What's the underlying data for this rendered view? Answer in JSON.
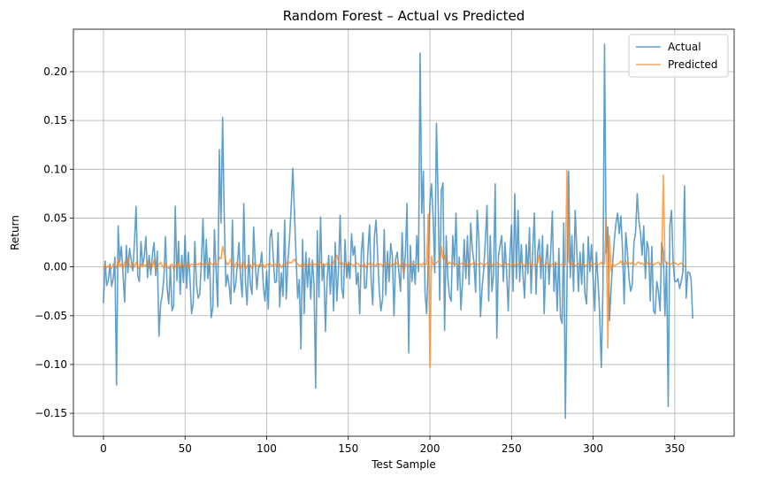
{
  "chart_data": {
    "type": "line",
    "title": "Random Forest – Actual vs Predicted",
    "xlabel": "Test Sample",
    "ylabel": "Return",
    "xlim": [
      -18.4,
      386.4
    ],
    "ylim": [
      -0.1735,
      0.2435
    ],
    "xticks": [
      0,
      50,
      100,
      150,
      200,
      250,
      300,
      350
    ],
    "yticks": [
      -0.15,
      -0.1,
      -0.05,
      0.0,
      0.05,
      0.1,
      0.15,
      0.2
    ],
    "ytick_labels": [
      "−0.15",
      "−0.10",
      "−0.05",
      "0.00",
      "0.05",
      "0.10",
      "0.15",
      "0.20"
    ],
    "grid": true,
    "legend_position": "top-right",
    "x_start": 0,
    "series": [
      {
        "name": "Actual",
        "color": "#1f77b4",
        "alpha": 0.7,
        "values": [
          -0.037,
          0.006,
          -0.019,
          -0.014,
          0.003,
          -0.02,
          -0.012,
          0.01,
          -0.121,
          0.042,
          0.005,
          0.021,
          -0.008,
          -0.036,
          0.022,
          -0.006,
          0.019,
          0.007,
          -0.004,
          0.025,
          0.062,
          -0.009,
          -0.015,
          0.026,
          0.002,
          0.01,
          0.031,
          -0.011,
          0.012,
          -0.008,
          0.013,
          0.025,
          -0.009,
          0.016,
          -0.071,
          -0.039,
          -0.029,
          -0.012,
          0.031,
          -0.021,
          -0.038,
          0.001,
          -0.045,
          -0.04,
          0.062,
          -0.014,
          0.026,
          -0.028,
          0.012,
          -0.016,
          0.032,
          -0.022,
          0.015,
          -0.012,
          -0.048,
          -0.037,
          0.026,
          -0.018,
          -0.032,
          -0.028,
          0.005,
          0.049,
          -0.014,
          0.028,
          -0.012,
          0.009,
          -0.052,
          -0.042,
          0.038,
          -0.003,
          -0.041,
          0.12,
          0.045,
          0.153,
          0.052,
          -0.02,
          -0.008,
          -0.019,
          -0.038,
          0.048,
          -0.026,
          -0.018,
          0.002,
          0.025,
          -0.011,
          -0.031,
          0.065,
          -0.016,
          -0.039,
          0.012,
          -0.018,
          -0.028,
          0.041,
          0.004,
          -0.023,
          -0.001,
          0.001,
          0.015,
          -0.021,
          -0.035,
          -0.004,
          -0.043,
          0.03,
          0.038,
          0.011,
          -0.016,
          -0.015,
          0.035,
          -0.041,
          -0.006,
          -0.03,
          0.048,
          -0.033,
          0.006,
          0.029,
          0.061,
          0.101,
          0.056,
          0.01,
          -0.032,
          -0.013,
          -0.084,
          0.028,
          -0.048,
          0.015,
          -0.021,
          0.009,
          -0.033,
          0.007,
          -0.018,
          -0.124,
          0.037,
          -0.031,
          0.051,
          -0.014,
          0.003,
          -0.066,
          -0.015,
          0.012,
          -0.028,
          0.011,
          -0.045,
          0.025,
          -0.035,
          -0.003,
          0.053,
          -0.022,
          -0.032,
          0.028,
          -0.011,
          0.005,
          -0.012,
          0.034,
          0.012,
          0.021,
          -0.018,
          -0.006,
          -0.048,
          0.015,
          0.035,
          -0.022,
          -0.021,
          0.015,
          0.043,
          -0.014,
          -0.039,
          0.031,
          0.048,
          0.012,
          -0.025,
          -0.045,
          -0.033,
          0.038,
          -0.029,
          0.016,
          -0.015,
          0.024,
          0.011,
          -0.05,
          0.008,
          0.015,
          -0.006,
          -0.025,
          0.035,
          -0.012,
          0.015,
          0.065,
          -0.088,
          0.022,
          -0.015,
          0.006,
          -0.018,
          0.032,
          -0.005,
          0.219,
          0.055,
          0.098,
          -0.026,
          -0.048,
          0.006,
          0.065,
          0.085,
          0.05,
          -0.006,
          0.147,
          0.073,
          -0.034,
          0.078,
          0.086,
          -0.065,
          0.032,
          -0.012,
          -0.03,
          -0.035,
          0.032,
          0.001,
          0.055,
          -0.024,
          0.01,
          -0.044,
          -0.015,
          0.028,
          -0.012,
          0.032,
          -0.018,
          0.045,
          0.018,
          0.005,
          -0.026,
          0.058,
          0.028,
          -0.051,
          -0.021,
          -0.002,
          0.028,
          0.063,
          -0.035,
          0.032,
          -0.025,
          -0.008,
          0.085,
          -0.073,
          0.011,
          0.022,
          0.032,
          -0.015,
          0.025,
          -0.005,
          -0.045,
          0.011,
          0.043,
          -0.025,
          0.075,
          -0.012,
          0.058,
          -0.015,
          0.023,
          -0.008,
          -0.032,
          0.023,
          -0.007,
          0.04,
          -0.027,
          0.017,
          0.055,
          -0.028,
          0.015,
          0.028,
          -0.012,
          0.032,
          -0.048,
          0.005,
          0.023,
          -0.018,
          0.015,
          0.057,
          -0.025,
          0.005,
          -0.045,
          0.019,
          -0.052,
          -0.058,
          0.045,
          -0.155,
          -0.015,
          0.098,
          -0.011,
          0.032,
          -0.025,
          0.058,
          0.016,
          -0.025,
          0.015,
          -0.018,
          0.024,
          -0.028,
          -0.038,
          0.031,
          -0.005,
          0.023,
          -0.012,
          -0.045,
          0.015,
          -0.015,
          -0.048,
          -0.103,
          -0.024,
          0.228,
          0.014,
          0.041,
          -0.055,
          -0.022,
          0.005,
          0.028,
          0.045,
          0.055,
          0.034,
          0.052,
          0.018,
          -0.038,
          0.035,
          0.015,
          -0.012,
          -0.025,
          -0.018,
          0.025,
          0.035,
          0.075,
          0.048,
          0.035,
          0.012,
          0.042,
          -0.012,
          0.026,
          0.018,
          -0.035,
          0.021,
          -0.045,
          -0.048,
          -0.015,
          -0.025,
          -0.045,
          0.025,
          0.015,
          -0.05,
          0.005,
          -0.143,
          0.042,
          0.058,
          0.005,
          -0.015,
          -0.015,
          -0.012,
          -0.022,
          -0.015,
          -0.005,
          0.083,
          -0.032,
          -0.005,
          -0.006,
          -0.012,
          -0.053
        ]
      },
      {
        "name": "Predicted",
        "color": "#ff7f0e",
        "alpha": 0.7,
        "values": [
          -0.003,
          0.002,
          -0.001,
          0.001,
          0.0,
          -0.002,
          0.003,
          0.001,
          -0.001,
          0.008,
          0.0,
          0.003,
          -0.002,
          0.005,
          0.001,
          0.009,
          0.002,
          -0.001,
          0.004,
          0.0,
          0.005,
          0.001,
          -0.002,
          0.003,
          0.0,
          0.002,
          0.001,
          0.006,
          -0.001,
          0.003,
          0.0,
          0.007,
          -0.004,
          0.001,
          0.002,
          0.005,
          0.001,
          -0.001,
          0.004,
          0.0,
          -0.002,
          0.002,
          0.003,
          -0.003,
          0.001,
          0.0,
          0.005,
          -0.002,
          0.003,
          0.001,
          0.0,
          0.004,
          -0.002,
          0.001,
          0.003,
          0.002,
          0.001,
          0.003,
          0.002,
          0.004,
          0.001,
          0.003,
          0.002,
          0.004,
          0.001,
          0.005,
          0.003,
          0.002,
          0.004,
          0.002,
          0.003,
          0.01,
          0.008,
          0.021,
          0.015,
          0.006,
          0.002,
          0.004,
          0.008,
          0.002,
          -0.001,
          0.003,
          0.005,
          0.001,
          -0.002,
          0.004,
          0.005,
          -0.003,
          0.001,
          0.003,
          0.002,
          -0.002,
          0.004,
          0.001,
          0.002,
          0.001,
          0.003,
          0.001,
          0.002,
          -0.001,
          0.003,
          0.002,
          0.004,
          0.001,
          0.002,
          0.003,
          0.001,
          0.002,
          0.003,
          -0.001,
          0.002,
          0.001,
          0.004,
          0.003,
          0.005,
          0.004,
          0.006,
          0.008,
          0.005,
          0.003,
          0.001,
          0.002,
          -0.001,
          0.003,
          0.002,
          0.001,
          0.004,
          0.002,
          0.001,
          0.003,
          0.002,
          0.004,
          0.001,
          0.005,
          0.002,
          0.003,
          0.001,
          0.004,
          0.003,
          0.002,
          0.001,
          0.005,
          0.008,
          0.012,
          0.006,
          0.003,
          0.005,
          0.002,
          0.003,
          0.001,
          0.004,
          0.002,
          0.003,
          0.001,
          0.002,
          0.004,
          0.003,
          0.001,
          0.002,
          0.001,
          0.003,
          -0.001,
          0.002,
          0.004,
          0.001,
          0.003,
          0.002,
          0.001,
          0.004,
          0.002,
          0.003,
          0.001,
          0.002,
          0.003,
          0.004,
          0.002,
          0.001,
          0.003,
          0.002,
          0.005,
          0.003,
          0.002,
          0.001,
          0.004,
          -0.006,
          0.003,
          0.002,
          0.001,
          0.004,
          0.003,
          0.002,
          0.001,
          0.003,
          0.002,
          0.003,
          0.001,
          0.004,
          0.002,
          0.003,
          0.054,
          -0.103,
          0.011,
          0.002,
          0.003,
          0.004,
          0.006,
          0.005,
          0.021,
          0.008,
          0.012,
          0.004,
          0.002,
          0.005,
          0.003,
          0.004,
          0.002,
          0.003,
          0.001,
          0.002,
          0.003,
          0.004,
          0.002,
          0.003,
          0.001,
          0.004,
          0.002,
          0.003,
          0.005,
          0.002,
          0.003,
          0.002,
          0.004,
          0.003,
          0.001,
          0.002,
          0.004,
          0.003,
          0.002,
          0.001,
          0.003,
          0.002,
          0.004,
          0.003,
          0.002,
          0.001,
          0.003,
          0.004,
          0.002,
          0.003,
          0.001,
          0.002,
          0.003,
          0.001,
          0.004,
          0.002,
          0.003,
          0.005,
          0.002,
          0.001,
          0.003,
          0.002,
          0.004,
          0.001,
          0.003,
          0.002,
          0.001,
          0.004,
          0.012,
          0.003,
          0.002,
          0.001,
          0.003,
          0.004,
          0.002,
          0.001,
          0.003,
          0.002,
          0.004,
          0.003,
          0.001,
          0.002,
          0.003,
          0.001,
          0.002,
          0.099,
          0.006,
          0.002,
          0.003,
          0.004,
          0.001,
          0.002,
          0.003,
          0.004,
          0.002,
          0.003,
          0.001,
          0.002,
          0.004,
          0.003,
          0.001,
          0.002,
          0.003,
          0.004,
          0.002,
          0.003,
          0.005,
          0.002,
          0.003,
          0.05,
          -0.083,
          0.032,
          -0.004,
          0.003,
          0.001,
          0.002,
          0.003,
          0.004,
          0.006,
          0.002,
          0.003,
          0.006,
          0.002,
          0.004,
          0.003,
          0.005,
          0.003,
          0.002,
          0.004,
          0.005,
          0.003,
          0.004,
          0.002,
          0.003,
          0.005,
          0.002,
          0.003,
          0.004,
          0.002,
          0.003,
          0.004,
          0.005,
          0.002,
          0.003,
          0.094,
          0.006,
          0.003,
          0.004,
          0.002,
          0.003,
          0.005,
          0.004,
          0.003,
          0.002,
          0.003,
          0.004,
          0.002,
          0.001,
          0.001
        ]
      }
    ]
  }
}
